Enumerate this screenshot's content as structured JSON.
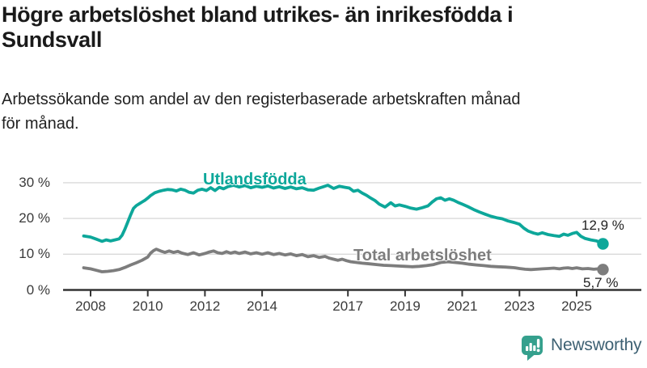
{
  "title": "Högre arbetslöshet bland utrikes- än inrikesfödda i\nSundsvall",
  "subtitle": "Arbetssökande som andel av den registerbaserade arbetskraften månad\nför månad.",
  "branding": {
    "logo_text": "Newsworthy",
    "logo_text_color": "#3e6173",
    "logo_icon": "bar-chart-speech-bubble-icon",
    "logo_icon_color": "#35a08d"
  },
  "chart_data": {
    "type": "line",
    "title": "Högre arbetslöshet bland utrikes- än inrikesfödda i Sundsvall",
    "subtitle": "Arbetssökande som andel av den registerbaserade arbetskraften månad för månad.",
    "xlabel": "",
    "ylabel": "",
    "x_range": [
      2007.7,
      2026.1
    ],
    "y_range": [
      0,
      33
    ],
    "grid": "horizontal",
    "grid_color": "#d9d9d9",
    "axis_color": "#333333",
    "tick_label_color": "#3a3a3a",
    "legend_position": "inline-labels",
    "y_ticks": [
      {
        "value": 0,
        "label": "0 %"
      },
      {
        "value": 10,
        "label": "10 %"
      },
      {
        "value": 20,
        "label": "20 %"
      },
      {
        "value": 30,
        "label": "30 %"
      }
    ],
    "x_ticks": [
      {
        "year": 2008,
        "label": "2008"
      },
      {
        "year": 2010,
        "label": "2010"
      },
      {
        "year": 2012,
        "label": "2012"
      },
      {
        "year": 2014,
        "label": "2014"
      },
      {
        "year": 2017,
        "label": "2017"
      },
      {
        "year": 2019,
        "label": "2019"
      },
      {
        "year": 2021,
        "label": "2021"
      },
      {
        "year": 2023,
        "label": "2023"
      },
      {
        "year": 2025,
        "label": "2025"
      }
    ],
    "series": [
      {
        "name": "Utlandsfödda",
        "color": "#0da79a",
        "end_label": "12,9 %",
        "end_value": 12.9,
        "points": [
          [
            2007.76,
            15.1
          ],
          [
            2008.0,
            14.8
          ],
          [
            2008.2,
            14.2
          ],
          [
            2008.4,
            13.6
          ],
          [
            2008.55,
            14.0
          ],
          [
            2008.7,
            13.7
          ],
          [
            2008.85,
            14.0
          ],
          [
            2009.0,
            14.3
          ],
          [
            2009.1,
            15.3
          ],
          [
            2009.2,
            17.0
          ],
          [
            2009.3,
            19.0
          ],
          [
            2009.4,
            21.0
          ],
          [
            2009.5,
            22.8
          ],
          [
            2009.6,
            23.6
          ],
          [
            2009.7,
            24.1
          ],
          [
            2009.8,
            24.6
          ],
          [
            2009.9,
            25.1
          ],
          [
            2010.0,
            25.7
          ],
          [
            2010.1,
            26.4
          ],
          [
            2010.25,
            27.2
          ],
          [
            2010.4,
            27.6
          ],
          [
            2010.55,
            27.9
          ],
          [
            2010.7,
            28.1
          ],
          [
            2010.85,
            28.0
          ],
          [
            2011.0,
            27.7
          ],
          [
            2011.15,
            28.2
          ],
          [
            2011.3,
            27.9
          ],
          [
            2011.45,
            27.3
          ],
          [
            2011.6,
            27.1
          ],
          [
            2011.75,
            27.9
          ],
          [
            2011.9,
            28.2
          ],
          [
            2012.05,
            27.8
          ],
          [
            2012.2,
            28.6
          ],
          [
            2012.35,
            27.8
          ],
          [
            2012.5,
            28.7
          ],
          [
            2012.65,
            28.3
          ],
          [
            2012.8,
            28.9
          ],
          [
            2013.0,
            29.3
          ],
          [
            2013.2,
            28.8
          ],
          [
            2013.4,
            29.2
          ],
          [
            2013.6,
            28.6
          ],
          [
            2013.8,
            29.0
          ],
          [
            2014.0,
            28.7
          ],
          [
            2014.2,
            29.1
          ],
          [
            2014.4,
            28.5
          ],
          [
            2014.6,
            28.9
          ],
          [
            2014.8,
            28.4
          ],
          [
            2015.0,
            28.8
          ],
          [
            2015.2,
            28.3
          ],
          [
            2015.4,
            28.6
          ],
          [
            2015.6,
            28.0
          ],
          [
            2015.8,
            27.9
          ],
          [
            2016.0,
            28.5
          ],
          [
            2016.15,
            28.9
          ],
          [
            2016.3,
            29.3
          ],
          [
            2016.5,
            28.4
          ],
          [
            2016.7,
            29.0
          ],
          [
            2016.9,
            28.7
          ],
          [
            2017.05,
            28.5
          ],
          [
            2017.2,
            27.6
          ],
          [
            2017.35,
            27.9
          ],
          [
            2017.5,
            27.1
          ],
          [
            2017.65,
            26.5
          ],
          [
            2017.8,
            25.7
          ],
          [
            2017.95,
            25.0
          ],
          [
            2018.1,
            24.0
          ],
          [
            2018.3,
            23.2
          ],
          [
            2018.5,
            24.4
          ],
          [
            2018.65,
            23.5
          ],
          [
            2018.8,
            23.8
          ],
          [
            2019.0,
            23.4
          ],
          [
            2019.2,
            22.9
          ],
          [
            2019.4,
            22.6
          ],
          [
            2019.6,
            23.0
          ],
          [
            2019.8,
            23.5
          ],
          [
            2019.95,
            24.6
          ],
          [
            2020.1,
            25.5
          ],
          [
            2020.25,
            25.8
          ],
          [
            2020.4,
            25.1
          ],
          [
            2020.55,
            25.5
          ],
          [
            2020.7,
            25.1
          ],
          [
            2020.85,
            24.5
          ],
          [
            2021.0,
            24.0
          ],
          [
            2021.2,
            23.3
          ],
          [
            2021.4,
            22.5
          ],
          [
            2021.6,
            21.8
          ],
          [
            2021.8,
            21.2
          ],
          [
            2022.0,
            20.6
          ],
          [
            2022.2,
            20.2
          ],
          [
            2022.4,
            19.9
          ],
          [
            2022.6,
            19.3
          ],
          [
            2022.8,
            18.9
          ],
          [
            2023.0,
            18.4
          ],
          [
            2023.15,
            17.3
          ],
          [
            2023.3,
            16.5
          ],
          [
            2023.5,
            15.9
          ],
          [
            2023.65,
            15.6
          ],
          [
            2023.8,
            16.0
          ],
          [
            2024.0,
            15.5
          ],
          [
            2024.2,
            15.2
          ],
          [
            2024.4,
            15.0
          ],
          [
            2024.55,
            15.6
          ],
          [
            2024.7,
            15.3
          ],
          [
            2024.85,
            15.8
          ],
          [
            2025.0,
            16.1
          ],
          [
            2025.15,
            15.0
          ],
          [
            2025.3,
            14.4
          ],
          [
            2025.5,
            14.0
          ],
          [
            2025.7,
            13.7
          ],
          [
            2025.92,
            12.9
          ]
        ]
      },
      {
        "name": "Total arbetslöshet",
        "color": "#7d7d7d",
        "end_label": "5,7 %",
        "end_value": 5.7,
        "points": [
          [
            2007.76,
            6.2
          ],
          [
            2008.0,
            5.9
          ],
          [
            2008.2,
            5.5
          ],
          [
            2008.4,
            5.1
          ],
          [
            2008.6,
            5.2
          ],
          [
            2008.8,
            5.4
          ],
          [
            2009.0,
            5.7
          ],
          [
            2009.2,
            6.3
          ],
          [
            2009.4,
            7.0
          ],
          [
            2009.6,
            7.6
          ],
          [
            2009.8,
            8.3
          ],
          [
            2010.0,
            9.2
          ],
          [
            2010.1,
            10.3
          ],
          [
            2010.2,
            11.0
          ],
          [
            2010.3,
            11.4
          ],
          [
            2010.45,
            10.9
          ],
          [
            2010.6,
            10.5
          ],
          [
            2010.75,
            10.9
          ],
          [
            2010.9,
            10.5
          ],
          [
            2011.05,
            10.8
          ],
          [
            2011.2,
            10.3
          ],
          [
            2011.4,
            9.9
          ],
          [
            2011.6,
            10.4
          ],
          [
            2011.8,
            9.8
          ],
          [
            2012.0,
            10.2
          ],
          [
            2012.15,
            10.6
          ],
          [
            2012.3,
            10.9
          ],
          [
            2012.45,
            10.4
          ],
          [
            2012.6,
            10.2
          ],
          [
            2012.75,
            10.7
          ],
          [
            2012.9,
            10.3
          ],
          [
            2013.05,
            10.6
          ],
          [
            2013.2,
            10.2
          ],
          [
            2013.4,
            10.6
          ],
          [
            2013.6,
            10.1
          ],
          [
            2013.8,
            10.4
          ],
          [
            2014.0,
            10.0
          ],
          [
            2014.2,
            10.4
          ],
          [
            2014.4,
            9.9
          ],
          [
            2014.6,
            10.2
          ],
          [
            2014.8,
            9.8
          ],
          [
            2015.0,
            10.1
          ],
          [
            2015.2,
            9.6
          ],
          [
            2015.4,
            9.9
          ],
          [
            2015.6,
            9.3
          ],
          [
            2015.8,
            9.6
          ],
          [
            2016.0,
            9.1
          ],
          [
            2016.2,
            9.4
          ],
          [
            2016.35,
            8.9
          ],
          [
            2016.5,
            8.6
          ],
          [
            2016.65,
            8.3
          ],
          [
            2016.8,
            8.6
          ],
          [
            2016.95,
            8.2
          ],
          [
            2017.1,
            7.9
          ],
          [
            2017.3,
            7.7
          ],
          [
            2017.5,
            7.5
          ],
          [
            2017.75,
            7.3
          ],
          [
            2018.0,
            7.1
          ],
          [
            2018.25,
            6.9
          ],
          [
            2018.5,
            6.8
          ],
          [
            2018.75,
            6.7
          ],
          [
            2019.0,
            6.6
          ],
          [
            2019.25,
            6.5
          ],
          [
            2019.5,
            6.6
          ],
          [
            2019.75,
            6.8
          ],
          [
            2020.0,
            7.1
          ],
          [
            2020.25,
            7.7
          ],
          [
            2020.5,
            7.9
          ],
          [
            2020.75,
            7.7
          ],
          [
            2021.0,
            7.5
          ],
          [
            2021.25,
            7.2
          ],
          [
            2021.5,
            7.0
          ],
          [
            2021.75,
            6.8
          ],
          [
            2022.0,
            6.6
          ],
          [
            2022.25,
            6.5
          ],
          [
            2022.5,
            6.4
          ],
          [
            2022.7,
            6.3
          ],
          [
            2022.85,
            6.2
          ],
          [
            2023.0,
            6.0
          ],
          [
            2023.2,
            5.8
          ],
          [
            2023.4,
            5.7
          ],
          [
            2023.6,
            5.8
          ],
          [
            2023.8,
            5.9
          ],
          [
            2024.0,
            6.0
          ],
          [
            2024.2,
            6.1
          ],
          [
            2024.4,
            5.9
          ],
          [
            2024.55,
            6.1
          ],
          [
            2024.7,
            6.2
          ],
          [
            2024.85,
            6.0
          ],
          [
            2025.0,
            6.2
          ],
          [
            2025.2,
            5.9
          ],
          [
            2025.4,
            6.0
          ],
          [
            2025.6,
            5.8
          ],
          [
            2025.75,
            5.9
          ],
          [
            2025.92,
            5.7
          ]
        ]
      }
    ]
  }
}
